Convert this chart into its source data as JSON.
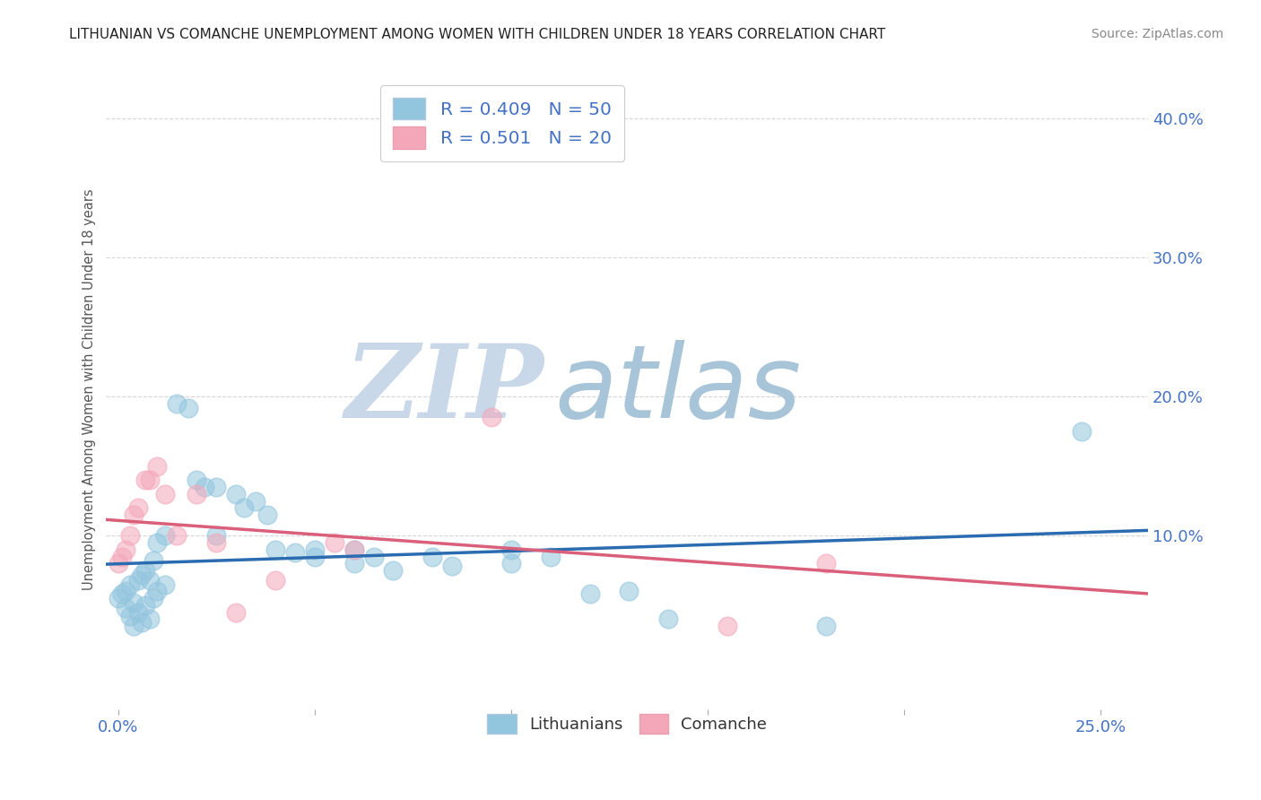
{
  "title": "LITHUANIAN VS COMANCHE UNEMPLOYMENT AMONG WOMEN WITH CHILDREN UNDER 18 YEARS CORRELATION CHART",
  "source": "Source: ZipAtlas.com",
  "ylabel": "Unemployment Among Women with Children Under 18 years",
  "xlim": [
    -0.003,
    0.262
  ],
  "ylim": [
    -0.025,
    0.435
  ],
  "legend_label_1": "R = 0.409   N = 50",
  "legend_label_2": "R = 0.501   N = 20",
  "legend_color_1": "#92c5de",
  "legend_color_2": "#f4a7b9",
  "scatter_blue": [
    [
      0.0,
      0.055
    ],
    [
      0.001,
      0.058
    ],
    [
      0.002,
      0.06
    ],
    [
      0.002,
      0.048
    ],
    [
      0.003,
      0.065
    ],
    [
      0.003,
      0.042
    ],
    [
      0.004,
      0.052
    ],
    [
      0.004,
      0.035
    ],
    [
      0.005,
      0.068
    ],
    [
      0.005,
      0.045
    ],
    [
      0.006,
      0.072
    ],
    [
      0.006,
      0.038
    ],
    [
      0.007,
      0.075
    ],
    [
      0.007,
      0.05
    ],
    [
      0.008,
      0.068
    ],
    [
      0.008,
      0.04
    ],
    [
      0.009,
      0.082
    ],
    [
      0.009,
      0.055
    ],
    [
      0.01,
      0.095
    ],
    [
      0.01,
      0.06
    ],
    [
      0.012,
      0.1
    ],
    [
      0.012,
      0.065
    ],
    [
      0.015,
      0.195
    ],
    [
      0.018,
      0.192
    ],
    [
      0.02,
      0.14
    ],
    [
      0.022,
      0.135
    ],
    [
      0.025,
      0.135
    ],
    [
      0.025,
      0.1
    ],
    [
      0.03,
      0.13
    ],
    [
      0.032,
      0.12
    ],
    [
      0.035,
      0.125
    ],
    [
      0.038,
      0.115
    ],
    [
      0.04,
      0.09
    ],
    [
      0.045,
      0.088
    ],
    [
      0.05,
      0.09
    ],
    [
      0.05,
      0.085
    ],
    [
      0.06,
      0.09
    ],
    [
      0.06,
      0.08
    ],
    [
      0.065,
      0.085
    ],
    [
      0.07,
      0.075
    ],
    [
      0.08,
      0.085
    ],
    [
      0.085,
      0.078
    ],
    [
      0.1,
      0.09
    ],
    [
      0.1,
      0.08
    ],
    [
      0.11,
      0.085
    ],
    [
      0.12,
      0.058
    ],
    [
      0.13,
      0.06
    ],
    [
      0.14,
      0.04
    ],
    [
      0.18,
      0.035
    ],
    [
      0.245,
      0.175
    ]
  ],
  "scatter_pink": [
    [
      0.0,
      0.08
    ],
    [
      0.001,
      0.085
    ],
    [
      0.002,
      0.09
    ],
    [
      0.003,
      0.1
    ],
    [
      0.004,
      0.115
    ],
    [
      0.005,
      0.12
    ],
    [
      0.007,
      0.14
    ],
    [
      0.008,
      0.14
    ],
    [
      0.01,
      0.15
    ],
    [
      0.012,
      0.13
    ],
    [
      0.015,
      0.1
    ],
    [
      0.02,
      0.13
    ],
    [
      0.025,
      0.095
    ],
    [
      0.03,
      0.045
    ],
    [
      0.04,
      0.068
    ],
    [
      0.055,
      0.095
    ],
    [
      0.06,
      0.09
    ],
    [
      0.095,
      0.185
    ],
    [
      0.155,
      0.035
    ],
    [
      0.18,
      0.08
    ]
  ],
  "line_blue_color": "#2b6cb0",
  "line_pink_color": "#d95f7a",
  "watermark_zip": "ZIP",
  "watermark_atlas": "atlas",
  "watermark_color_zip": "#c8d8e8",
  "watermark_color_atlas": "#a8c4d8",
  "background_color": "#ffffff",
  "grid_color": "#cccccc",
  "tick_color": "#4472c4",
  "title_color": "#222222",
  "source_color": "#888888",
  "ylabel_color": "#555555"
}
